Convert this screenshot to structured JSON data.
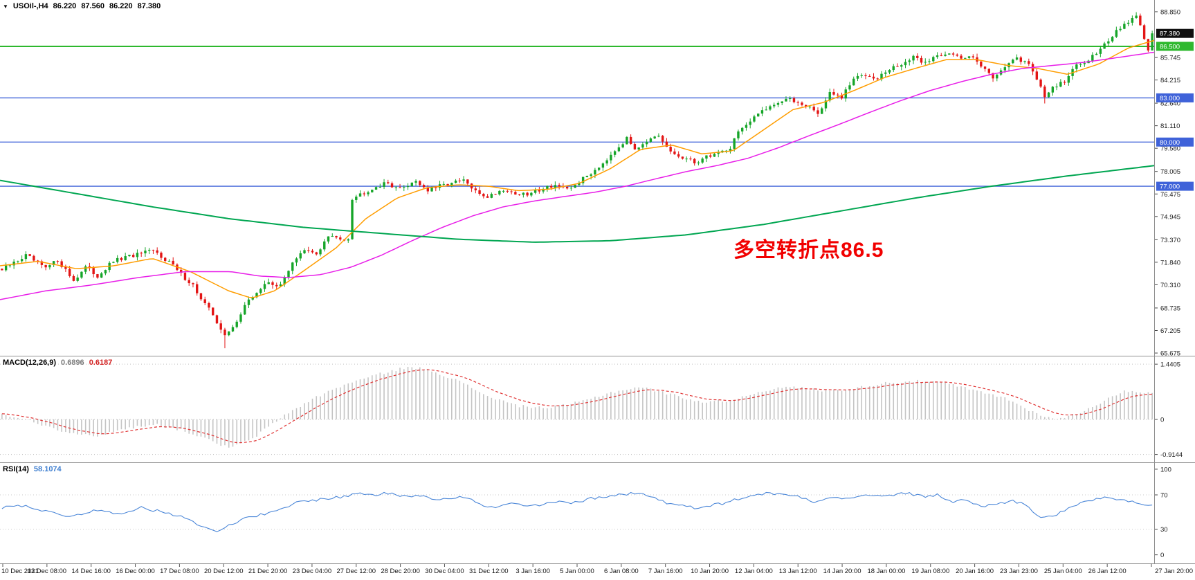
{
  "header": {
    "dropdown_icon": "▼",
    "symbol_timeframe": "USOil-,H4",
    "open": "86.220",
    "high": "87.560",
    "low": "86.220",
    "close": "87.380"
  },
  "annotation": {
    "text": "多空转折点86.5",
    "color": "#f10000"
  },
  "price_axis": {
    "gridline_labels": [
      "88.850",
      "85.745",
      "84.215",
      "82.640",
      "81.110",
      "79.580",
      "78.005",
      "76.475",
      "74.945",
      "73.370",
      "71.840",
      "70.310",
      "68.735",
      "67.205",
      "65.675"
    ],
    "current": {
      "label": "87.380",
      "bg": "#101010"
    }
  },
  "time_axis": {
    "labels": [
      "10 Dec 2021",
      "13 Dec 08:00",
      "14 Dec 16:00",
      "16 Dec 00:00",
      "17 Dec 08:00",
      "20 Dec 12:00",
      "21 Dec 20:00",
      "23 Dec 04:00",
      "27 Dec 12:00",
      "28 Dec 20:00",
      "30 Dec 04:00",
      "31 Dec 12:00",
      "3 Jan 16:00",
      "5 Jan 00:00",
      "6 Jan 08:00",
      "7 Jan 16:00",
      "10 Jan 20:00",
      "12 Jan 04:00",
      "13 Jan 12:00",
      "14 Jan 20:00",
      "18 Jan 00:00",
      "19 Jan 08:00",
      "20 Jan 16:00",
      "23 Jan 23:00",
      "25 Jan 04:00",
      "26 Jan 12:00",
      "27 Jan 20:00"
    ]
  },
  "macd_panel": {
    "label": "MACD(12,26,9)",
    "main_value": "0.6896",
    "signal_value": "0.6187",
    "axis": [
      "1.4405",
      "0",
      "-0.9144"
    ]
  },
  "rsi_panel": {
    "label": "RSI(14)",
    "value": "58.1074",
    "axis": [
      "100",
      "70",
      "30",
      "0"
    ]
  },
  "colors": {
    "bull": "#16a529",
    "bear": "#e31515",
    "ma_fast": "#ff9d00",
    "ma_medium": "#e81ee8",
    "ma_slow": "#00a651",
    "macd_hist": "#c4c4c4",
    "macd_signal": "#e03232",
    "rsi": "#4a86d8",
    "separator": "#8f8f8f",
    "axis_text": "#1a1a1a"
  },
  "chart_data": {
    "type": "candlestick",
    "symbol": "USOil",
    "timeframe": "H4",
    "title": "USOil-,H4 86.220 87.560 86.220 87.380",
    "ohlc_current": {
      "open": 86.22,
      "high": 87.56,
      "low": 86.22,
      "close": 87.38
    },
    "current_price": 87.38,
    "visible_range": {
      "price_min": 65.675,
      "price_max": 88.85,
      "time_start": "10 Dec 2021",
      "time_end": "27 Jan 20:00"
    },
    "candle_count": 290,
    "horizontal_levels": [
      {
        "price": 86.5,
        "label": "86.500",
        "color": "#2eb82e",
        "width": 2
      },
      {
        "price": 83.0,
        "label": "83.000",
        "color": "#3f62d9",
        "width": 1.3
      },
      {
        "price": 80.0,
        "label": "80.000",
        "color": "#3f62d9",
        "width": 1.3
      },
      {
        "price": 77.0,
        "label": "77.000",
        "color": "#3f62d9",
        "width": 1.3
      }
    ],
    "price_path_anchors": [
      [
        0,
        71.3
      ],
      [
        6,
        72.3
      ],
      [
        11,
        71.4
      ],
      [
        14,
        72.0
      ],
      [
        18,
        70.6
      ],
      [
        21,
        71.5
      ],
      [
        24,
        70.9
      ],
      [
        28,
        71.9
      ],
      [
        33,
        72.3
      ],
      [
        38,
        72.6
      ],
      [
        42,
        71.9
      ],
      [
        45,
        71.0
      ],
      [
        48,
        70.3
      ],
      [
        50,
        69.3
      ],
      [
        53,
        68.3
      ],
      [
        56,
        66.8
      ],
      [
        58,
        67.4
      ],
      [
        61,
        68.9
      ],
      [
        64,
        69.8
      ],
      [
        67,
        70.5
      ],
      [
        70,
        70.2
      ],
      [
        73,
        71.9
      ],
      [
        76,
        72.6
      ],
      [
        79,
        72.4
      ],
      [
        82,
        73.6
      ],
      [
        85,
        73.4
      ],
      [
        87,
        73.5
      ],
      [
        88,
        76.2
      ],
      [
        91,
        76.6
      ],
      [
        94,
        77.0
      ],
      [
        97,
        77.2
      ],
      [
        100,
        76.8
      ],
      [
        104,
        77.4
      ],
      [
        107,
        76.7
      ],
      [
        110,
        77.0
      ],
      [
        113,
        77.2
      ],
      [
        116,
        77.4
      ],
      [
        119,
        76.6
      ],
      [
        122,
        76.3
      ],
      [
        126,
        76.8
      ],
      [
        129,
        76.5
      ],
      [
        132,
        76.4
      ],
      [
        136,
        76.9
      ],
      [
        139,
        77.1
      ],
      [
        142,
        76.7
      ],
      [
        145,
        77.3
      ],
      [
        148,
        77.9
      ],
      [
        151,
        78.6
      ],
      [
        154,
        79.5
      ],
      [
        157,
        80.2
      ],
      [
        159,
        79.6
      ],
      [
        162,
        80.1
      ],
      [
        165,
        80.3
      ],
      [
        168,
        79.3
      ],
      [
        171,
        78.9
      ],
      [
        174,
        78.6
      ],
      [
        177,
        79.0
      ],
      [
        180,
        79.3
      ],
      [
        183,
        79.6
      ],
      [
        185,
        80.8
      ],
      [
        188,
        81.3
      ],
      [
        191,
        82.2
      ],
      [
        194,
        82.6
      ],
      [
        197,
        82.9
      ],
      [
        200,
        82.7
      ],
      [
        203,
        82.4
      ],
      [
        205,
        81.9
      ],
      [
        208,
        83.3
      ],
      [
        211,
        83.0
      ],
      [
        214,
        84.3
      ],
      [
        217,
        84.6
      ],
      [
        220,
        84.4
      ],
      [
        223,
        84.9
      ],
      [
        226,
        85.3
      ],
      [
        229,
        85.7
      ],
      [
        232,
        85.4
      ],
      [
        235,
        85.9
      ],
      [
        238,
        86.1
      ],
      [
        241,
        85.6
      ],
      [
        244,
        85.9
      ],
      [
        247,
        84.9
      ],
      [
        249,
        84.4
      ],
      [
        252,
        85.2
      ],
      [
        255,
        85.6
      ],
      [
        258,
        85.4
      ],
      [
        260,
        84.3
      ],
      [
        262,
        83.0
      ],
      [
        264,
        83.8
      ],
      [
        267,
        84.1
      ],
      [
        270,
        85.2
      ],
      [
        273,
        85.6
      ],
      [
        276,
        86.4
      ],
      [
        279,
        87.2
      ],
      [
        282,
        88.0
      ],
      [
        285,
        88.5
      ],
      [
        287,
        87.1
      ],
      [
        288,
        86.22
      ],
      [
        289,
        87.38
      ]
    ],
    "moving_averages": [
      {
        "name": "fast-orange",
        "color": "#ff9d00",
        "width": 1.5,
        "anchors": [
          [
            0,
            71.6
          ],
          [
            0.033,
            71.9
          ],
          [
            0.066,
            71.4
          ],
          [
            0.099,
            71.6
          ],
          [
            0.132,
            72.1
          ],
          [
            0.165,
            71.2
          ],
          [
            0.198,
            69.9
          ],
          [
            0.218,
            69.4
          ],
          [
            0.238,
            69.9
          ],
          [
            0.264,
            71.3
          ],
          [
            0.291,
            72.8
          ],
          [
            0.317,
            74.8
          ],
          [
            0.344,
            76.2
          ],
          [
            0.37,
            76.9
          ],
          [
            0.397,
            77.1
          ],
          [
            0.423,
            77.0
          ],
          [
            0.449,
            76.7
          ],
          [
            0.476,
            76.8
          ],
          [
            0.502,
            77.2
          ],
          [
            0.529,
            78.2
          ],
          [
            0.555,
            79.5
          ],
          [
            0.582,
            79.8
          ],
          [
            0.608,
            79.2
          ],
          [
            0.635,
            79.4
          ],
          [
            0.661,
            80.8
          ],
          [
            0.687,
            82.2
          ],
          [
            0.714,
            82.7
          ],
          [
            0.74,
            83.5
          ],
          [
            0.767,
            84.4
          ],
          [
            0.793,
            85.0
          ],
          [
            0.82,
            85.6
          ],
          [
            0.846,
            85.6
          ],
          [
            0.873,
            85.2
          ],
          [
            0.899,
            85.0
          ],
          [
            0.925,
            84.6
          ],
          [
            0.952,
            85.3
          ],
          [
            0.978,
            86.4
          ],
          [
            1,
            86.9
          ]
        ]
      },
      {
        "name": "medium-magenta",
        "color": "#e81ee8",
        "width": 1.5,
        "anchors": [
          [
            0,
            69.3
          ],
          [
            0.04,
            69.9
          ],
          [
            0.08,
            70.3
          ],
          [
            0.12,
            70.8
          ],
          [
            0.16,
            71.2
          ],
          [
            0.2,
            71.2
          ],
          [
            0.225,
            70.9
          ],
          [
            0.25,
            70.8
          ],
          [
            0.278,
            71.0
          ],
          [
            0.304,
            71.5
          ],
          [
            0.33,
            72.3
          ],
          [
            0.357,
            73.3
          ],
          [
            0.383,
            74.2
          ],
          [
            0.41,
            75.0
          ],
          [
            0.436,
            75.6
          ],
          [
            0.463,
            76.0
          ],
          [
            0.489,
            76.3
          ],
          [
            0.516,
            76.6
          ],
          [
            0.542,
            77.0
          ],
          [
            0.568,
            77.5
          ],
          [
            0.595,
            78.0
          ],
          [
            0.621,
            78.4
          ],
          [
            0.648,
            78.9
          ],
          [
            0.674,
            79.6
          ],
          [
            0.7,
            80.4
          ],
          [
            0.727,
            81.2
          ],
          [
            0.753,
            82.0
          ],
          [
            0.78,
            82.8
          ],
          [
            0.806,
            83.5
          ],
          [
            0.833,
            84.1
          ],
          [
            0.859,
            84.6
          ],
          [
            0.886,
            85.0
          ],
          [
            0.912,
            85.2
          ],
          [
            0.938,
            85.4
          ],
          [
            0.965,
            85.7
          ],
          [
            1,
            86.1
          ]
        ]
      },
      {
        "name": "slow-green",
        "color": "#00a651",
        "width": 2,
        "anchors": [
          [
            0,
            77.4
          ],
          [
            0.066,
            76.5
          ],
          [
            0.132,
            75.6
          ],
          [
            0.198,
            74.8
          ],
          [
            0.264,
            74.2
          ],
          [
            0.33,
            73.8
          ],
          [
            0.397,
            73.4
          ],
          [
            0.463,
            73.2
          ],
          [
            0.529,
            73.3
          ],
          [
            0.595,
            73.7
          ],
          [
            0.661,
            74.4
          ],
          [
            0.727,
            75.3
          ],
          [
            0.793,
            76.2
          ],
          [
            0.859,
            77.0
          ],
          [
            0.925,
            77.7
          ],
          [
            1,
            78.4
          ]
        ]
      }
    ],
    "macd": {
      "current_main": 0.6896,
      "current_signal": 0.6187,
      "axis_range": [
        -0.9144,
        1.4405
      ],
      "anchors": [
        [
          0,
          0.15
        ],
        [
          0.026,
          -0.05
        ],
        [
          0.053,
          -0.3
        ],
        [
          0.079,
          -0.45
        ],
        [
          0.106,
          -0.25
        ],
        [
          0.132,
          -0.12
        ],
        [
          0.159,
          -0.3
        ],
        [
          0.185,
          -0.6
        ],
        [
          0.198,
          -0.75
        ],
        [
          0.218,
          -0.5
        ],
        [
          0.245,
          0.1
        ],
        [
          0.271,
          0.55
        ],
        [
          0.297,
          0.9
        ],
        [
          0.324,
          1.15
        ],
        [
          0.35,
          1.35
        ],
        [
          0.37,
          1.32
        ],
        [
          0.397,
          1.0
        ],
        [
          0.423,
          0.6
        ],
        [
          0.449,
          0.35
        ],
        [
          0.476,
          0.3
        ],
        [
          0.502,
          0.45
        ],
        [
          0.529,
          0.7
        ],
        [
          0.555,
          0.85
        ],
        [
          0.582,
          0.65
        ],
        [
          0.608,
          0.45
        ],
        [
          0.635,
          0.5
        ],
        [
          0.661,
          0.75
        ],
        [
          0.687,
          0.85
        ],
        [
          0.714,
          0.75
        ],
        [
          0.74,
          0.8
        ],
        [
          0.767,
          0.95
        ],
        [
          0.793,
          1.0
        ],
        [
          0.82,
          0.95
        ],
        [
          0.846,
          0.75
        ],
        [
          0.873,
          0.55
        ],
        [
          0.899,
          0.15
        ],
        [
          0.919,
          0.0
        ],
        [
          0.939,
          0.2
        ],
        [
          0.959,
          0.5
        ],
        [
          0.978,
          0.75
        ],
        [
          1,
          0.69
        ]
      ]
    },
    "rsi": {
      "current": 58.1074,
      "levels": [
        70,
        30
      ],
      "anchors": [
        [
          0,
          55
        ],
        [
          0.02,
          58
        ],
        [
          0.04,
          50
        ],
        [
          0.06,
          45
        ],
        [
          0.08,
          52
        ],
        [
          0.1,
          48
        ],
        [
          0.12,
          55
        ],
        [
          0.14,
          50
        ],
        [
          0.16,
          44
        ],
        [
          0.178,
          30
        ],
        [
          0.188,
          27
        ],
        [
          0.198,
          36
        ],
        [
          0.218,
          45
        ],
        [
          0.238,
          50
        ],
        [
          0.258,
          62
        ],
        [
          0.278,
          65
        ],
        [
          0.297,
          68
        ],
        [
          0.311,
          72
        ],
        [
          0.324,
          70
        ],
        [
          0.337,
          72
        ],
        [
          0.35,
          68
        ],
        [
          0.364,
          70
        ],
        [
          0.377,
          65
        ],
        [
          0.39,
          67
        ],
        [
          0.403,
          68
        ],
        [
          0.416,
          58
        ],
        [
          0.43,
          55
        ],
        [
          0.443,
          60
        ],
        [
          0.456,
          57
        ],
        [
          0.469,
          58
        ],
        [
          0.483,
          62
        ],
        [
          0.496,
          60
        ],
        [
          0.509,
          65
        ],
        [
          0.522,
          68
        ],
        [
          0.535,
          70
        ],
        [
          0.549,
          72
        ],
        [
          0.562,
          70
        ],
        [
          0.575,
          62
        ],
        [
          0.588,
          58
        ],
        [
          0.601,
          55
        ],
        [
          0.615,
          58
        ],
        [
          0.628,
          60
        ],
        [
          0.641,
          66
        ],
        [
          0.654,
          70
        ],
        [
          0.667,
          72
        ],
        [
          0.681,
          70
        ],
        [
          0.694,
          68
        ],
        [
          0.707,
          62
        ],
        [
          0.72,
          68
        ],
        [
          0.734,
          65
        ],
        [
          0.747,
          70
        ],
        [
          0.76,
          68
        ],
        [
          0.773,
          70
        ],
        [
          0.786,
          72
        ],
        [
          0.8,
          68
        ],
        [
          0.813,
          70
        ],
        [
          0.826,
          62
        ],
        [
          0.839,
          64
        ],
        [
          0.852,
          56
        ],
        [
          0.866,
          60
        ],
        [
          0.879,
          63
        ],
        [
          0.892,
          58
        ],
        [
          0.902,
          42
        ],
        [
          0.912,
          45
        ],
        [
          0.922,
          50
        ],
        [
          0.932,
          58
        ],
        [
          0.945,
          62
        ],
        [
          0.958,
          68
        ],
        [
          0.971,
          65
        ],
        [
          0.981,
          62
        ],
        [
          0.991,
          58
        ],
        [
          1,
          58.1
        ]
      ]
    }
  }
}
